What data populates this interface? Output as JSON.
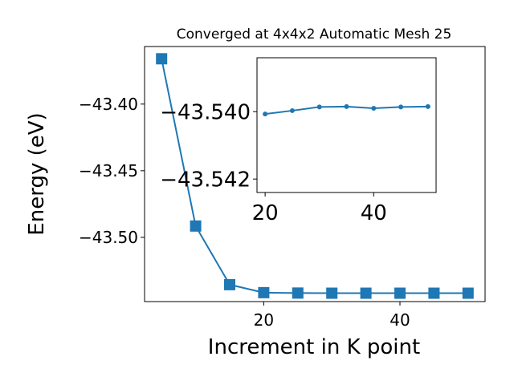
{
  "chart_data": [
    {
      "type": "line",
      "title": "Converged at 4x4x2 Automatic Mesh 25",
      "xlabel": "Increment in K point",
      "ylabel": "Energy (eV)",
      "xlim": [
        2.5,
        52.5
      ],
      "ylim": [
        -43.5482,
        -43.3568
      ],
      "x_ticks": [
        20,
        40
      ],
      "x_tick_labels": [
        "20",
        "40"
      ],
      "y_ticks": [
        -43.5,
        -43.45,
        -43.4
      ],
      "y_tick_labels": [
        "−43.50",
        "−43.45",
        "−43.40"
      ],
      "grid": false,
      "marker": "square",
      "color": "#1f77b4",
      "series": [
        {
          "x": [
            5,
            10,
            15,
            20,
            25,
            30,
            35,
            40,
            45,
            50
          ],
          "y": [
            -43.366,
            -43.4915,
            -43.5355,
            -43.5415,
            -43.5418,
            -43.5419,
            -43.5419,
            -43.5419,
            -43.5419,
            -43.5419
          ]
        }
      ]
    },
    {
      "type": "line",
      "title": "",
      "xlim": [
        18.5,
        51.5
      ],
      "ylim": [
        -43.5424,
        -43.5384
      ],
      "x_ticks": [
        20,
        40
      ],
      "x_tick_labels": [
        "20",
        "40"
      ],
      "y_ticks": [
        -43.542,
        -43.54
      ],
      "y_tick_labels": [
        "−43.542",
        "−43.540"
      ],
      "grid": false,
      "marker": "circle",
      "color": "#1f77b4",
      "series": [
        {
          "x": [
            20,
            25,
            30,
            35,
            40,
            45,
            50
          ],
          "y": [
            -43.54007,
            -43.53997,
            -43.53986,
            -43.53985,
            -43.5399,
            -43.53986,
            -43.53985
          ]
        }
      ]
    }
  ]
}
